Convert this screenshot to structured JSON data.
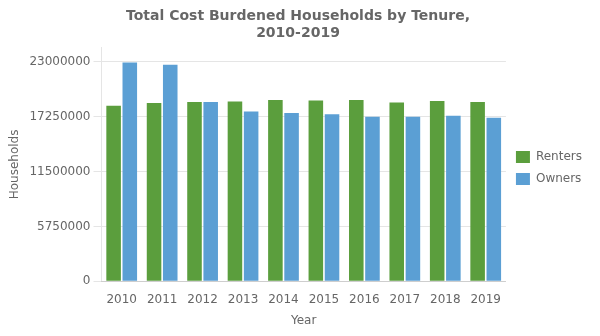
{
  "chart_data": {
    "type": "bar",
    "title": "Total Cost Burdened Households by Tenure,\n2010-2019",
    "xlabel": "Year",
    "ylabel": "Households",
    "categories": [
      "2010",
      "2011",
      "2012",
      "2013",
      "2014",
      "2015",
      "2016",
      "2017",
      "2018",
      "2019"
    ],
    "series": [
      {
        "name": "Renters",
        "color": "#5B9E3D",
        "values": [
          18400000,
          18700000,
          18800000,
          18850000,
          19000000,
          18950000,
          19000000,
          18750000,
          18900000,
          18800000
        ]
      },
      {
        "name": "Owners",
        "color": "#5B9FD4",
        "values": [
          22950000,
          22700000,
          18800000,
          17800000,
          17650000,
          17500000,
          17250000,
          17250000,
          17350000,
          17150000
        ]
      }
    ],
    "ylim": [
      0,
      24500000
    ],
    "yticks": [
      0,
      5750000,
      11500000,
      17250000,
      23000000
    ],
    "grid": true,
    "legend": "right"
  }
}
